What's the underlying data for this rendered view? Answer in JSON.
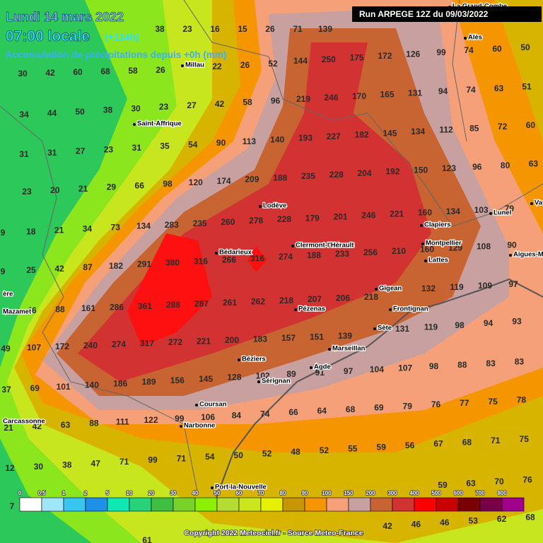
{
  "header": {
    "date": "Lundi 14 mars 2022",
    "time": "07:00 locale",
    "lead": "(+114h)",
    "subtitle": "Accumulation de précipitations depuis +0h (mm)",
    "run": "Run ARPEGE 12Z du 09/03/2022"
  },
  "cities": [
    "La Grand-Combe",
    "Alès",
    "Millau",
    "Saint-Affrique",
    "Lodève",
    "Bédarieux",
    "Clermont-l'Hérault",
    "Lunel",
    "Vau",
    "Clapiers",
    "Montpellier",
    "Lattes",
    "Aigues-M",
    "ère",
    "Mazamet",
    "Gigean",
    "Pézenas",
    "Frontignan",
    "Sète",
    "Marseillan",
    "Béziers",
    "Agde",
    "Sérignan",
    "Carcassonne",
    "Coursan",
    "Narbonne",
    "Port-la-Nouvelle"
  ],
  "grid_values": [
    [
      38,
      23,
      16,
      15,
      26,
      71,
      139
    ],
    [
      30,
      42,
      60,
      68,
      58,
      26
    ],
    [
      22,
      26,
      52
    ],
    [
      144,
      250,
      175,
      172,
      126,
      99
    ],
    [
      74,
      60,
      50
    ],
    [
      34,
      44,
      50,
      38,
      30,
      23,
      27,
      42,
      58,
      96,
      219,
      246,
      170,
      165,
      131,
      94,
      74,
      63,
      51
    ],
    [
      31,
      31,
      27,
      23,
      31,
      35,
      54,
      90,
      113,
      140,
      193,
      227,
      182,
      145,
      134,
      112,
      85,
      72,
      60
    ],
    [
      23,
      20,
      21,
      29,
      66,
      98,
      120,
      174,
      209,
      188,
      235,
      228,
      204,
      192,
      150,
      123,
      96,
      80,
      63
    ],
    [
      9,
      18,
      21,
      34,
      73,
      134,
      283,
      235,
      260,
      278,
      228,
      179,
      201,
      246,
      221,
      160,
      134,
      103,
      79
    ],
    [
      9,
      25,
      42,
      87,
      182,
      291,
      380,
      316,
      266,
      316,
      274,
      188,
      233,
      256,
      210,
      160,
      129,
      108,
      90
    ],
    [
      46,
      88,
      161,
      286,
      361,
      288,
      287,
      261,
      262,
      218,
      207,
      206,
      218
    ],
    [
      132,
      119,
      109,
      97
    ],
    [
      49,
      107,
      172,
      240,
      274,
      317,
      272,
      221,
      200,
      183,
      157,
      151,
      139
    ],
    [
      131,
      119,
      98,
      94,
      93
    ],
    [
      37,
      69,
      101,
      140,
      186,
      189,
      156,
      145,
      128,
      102,
      89,
      91,
      97,
      104,
      107,
      98,
      88,
      83,
      83
    ],
    [
      21,
      42,
      63,
      88,
      111,
      122,
      99,
      106,
      84,
      74,
      66,
      64,
      68,
      69,
      79,
      76,
      77,
      75,
      78
    ],
    [
      12,
      30,
      38,
      47,
      71,
      99,
      71,
      54,
      50,
      52,
      48,
      52,
      55,
      59,
      56,
      67,
      68,
      71,
      75
    ],
    [
      59,
      63,
      70,
      76
    ],
    [
      42,
      46,
      46,
      53,
      62,
      68
    ],
    [
      7
    ],
    [
      61
    ]
  ],
  "colorbar_labels": [
    0,
    0.5,
    1,
    2,
    5,
    10,
    20,
    30,
    40,
    50,
    60,
    70,
    80,
    90,
    100,
    150,
    200,
    300,
    400,
    500,
    600,
    700,
    800
  ],
  "footer": "Copyright 2022 Meteociel.fr - Source Meteo-France"
}
